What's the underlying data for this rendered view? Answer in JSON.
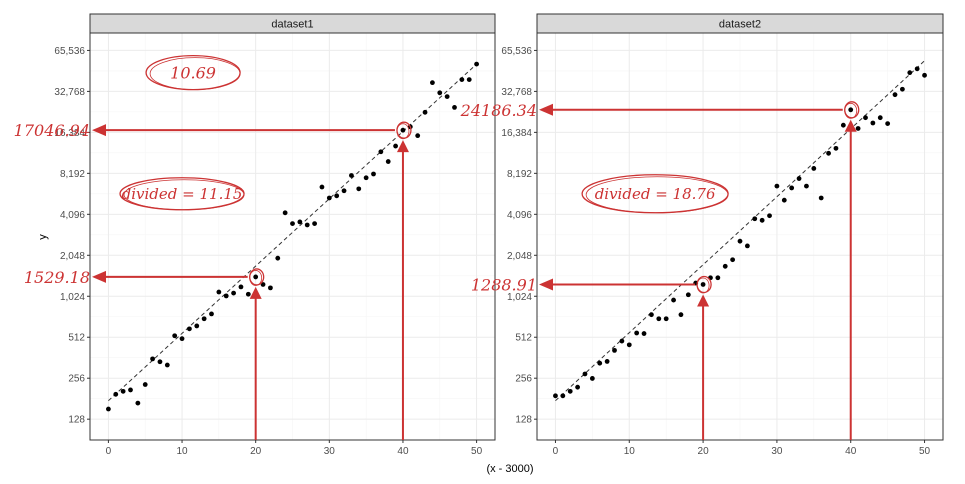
{
  "chart_data": {
    "type": "scatter",
    "xlabel": "(x - 3000)",
    "ylabel": "y",
    "y_scale": "log2",
    "x_ticks": [
      0,
      10,
      20,
      30,
      40,
      50
    ],
    "y_ticks": [
      128,
      256,
      512,
      1024,
      2048,
      4096,
      8192,
      16384,
      32768,
      65536
    ],
    "y_tick_labels": [
      "128",
      "256",
      "512",
      "1,024",
      "2,048",
      "4,096",
      "8,192",
      "16,384",
      "32,768",
      "65,536"
    ],
    "x_range": [
      -2.5,
      52.5
    ],
    "y_range": [
      90,
      88000
    ],
    "grid": true,
    "facets": [
      {
        "title": "dataset1",
        "points": [
          [
            0,
            152
          ],
          [
            1,
            195
          ],
          [
            2,
            205
          ],
          [
            3,
            210
          ],
          [
            4,
            168
          ],
          [
            5,
            230
          ],
          [
            6,
            355
          ],
          [
            7,
            338
          ],
          [
            8,
            320
          ],
          [
            9,
            525
          ],
          [
            10,
            500
          ],
          [
            11,
            590
          ],
          [
            12,
            620
          ],
          [
            13,
            700
          ],
          [
            14,
            760
          ],
          [
            15,
            1100
          ],
          [
            16,
            1030
          ],
          [
            17,
            1080
          ],
          [
            18,
            1200
          ],
          [
            19,
            1060
          ],
          [
            20,
            1420
          ],
          [
            21,
            1250
          ],
          [
            22,
            1180
          ],
          [
            23,
            1950
          ],
          [
            24,
            4200
          ],
          [
            25,
            3500
          ],
          [
            26,
            3600
          ],
          [
            27,
            3420
          ],
          [
            28,
            3500
          ],
          [
            29,
            6500
          ],
          [
            30,
            5400
          ],
          [
            31,
            5600
          ],
          [
            32,
            6100
          ],
          [
            33,
            7900
          ],
          [
            34,
            6300
          ],
          [
            35,
            7600
          ],
          [
            36,
            8100
          ],
          [
            37,
            11800
          ],
          [
            38,
            10000
          ],
          [
            39,
            13000
          ],
          [
            40,
            17000
          ],
          [
            41,
            18000
          ],
          [
            42,
            15500
          ],
          [
            43,
            23000
          ],
          [
            44,
            38000
          ],
          [
            45,
            32000
          ],
          [
            46,
            30000
          ],
          [
            47,
            25000
          ],
          [
            48,
            40000
          ],
          [
            49,
            40000
          ],
          [
            50,
            52000
          ]
        ],
        "trend": [
          [
            0,
            175
          ],
          [
            50,
            52000
          ]
        ],
        "annotations": {
          "ratio": "10.69",
          "divided": "divided = 11.15",
          "low_value": "1529.18",
          "high_value": "17046.94",
          "low_x": 20,
          "high_x": 40
        }
      },
      {
        "title": "dataset2",
        "points": [
          [
            0,
            190
          ],
          [
            1,
            190
          ],
          [
            2,
            205
          ],
          [
            3,
            220
          ],
          [
            4,
            275
          ],
          [
            5,
            255
          ],
          [
            6,
            330
          ],
          [
            7,
            340
          ],
          [
            8,
            410
          ],
          [
            9,
            480
          ],
          [
            10,
            450
          ],
          [
            11,
            550
          ],
          [
            12,
            545
          ],
          [
            13,
            750
          ],
          [
            14,
            700
          ],
          [
            15,
            700
          ],
          [
            16,
            960
          ],
          [
            17,
            750
          ],
          [
            18,
            1050
          ],
          [
            19,
            1280
          ],
          [
            20,
            1250
          ],
          [
            21,
            1400
          ],
          [
            22,
            1400
          ],
          [
            23,
            1700
          ],
          [
            24,
            1900
          ],
          [
            25,
            2600
          ],
          [
            26,
            2400
          ],
          [
            27,
            3800
          ],
          [
            28,
            3700
          ],
          [
            29,
            4000
          ],
          [
            30,
            6600
          ],
          [
            31,
            5200
          ],
          [
            32,
            6400
          ],
          [
            33,
            7500
          ],
          [
            34,
            6600
          ],
          [
            35,
            8900
          ],
          [
            36,
            5400
          ],
          [
            37,
            11500
          ],
          [
            38,
            12500
          ],
          [
            39,
            18500
          ],
          [
            40,
            24000
          ],
          [
            41,
            17500
          ],
          [
            42,
            21000
          ],
          [
            43,
            19200
          ],
          [
            44,
            21000
          ],
          [
            45,
            19000
          ],
          [
            46,
            31000
          ],
          [
            47,
            34000
          ],
          [
            48,
            45000
          ],
          [
            49,
            48000
          ],
          [
            50,
            43000
          ]
        ],
        "trend": [
          [
            0,
            175
          ],
          [
            50,
            55000
          ]
        ],
        "annotations": {
          "ratio": "",
          "divided": "divided = 18.76",
          "low_value": "1288.91",
          "high_value": "24186.34",
          "low_x": 20,
          "high_x": 40
        }
      }
    ]
  },
  "colors": {
    "panel_bg": "#ffffff",
    "panel_border": "#333333",
    "strip_bg": "#d9d9d9",
    "grid_major": "#ebebeb",
    "grid_minor": "#f5f5f5",
    "point": "#000000",
    "trend": "#333333",
    "annotation": "#cc3333"
  }
}
